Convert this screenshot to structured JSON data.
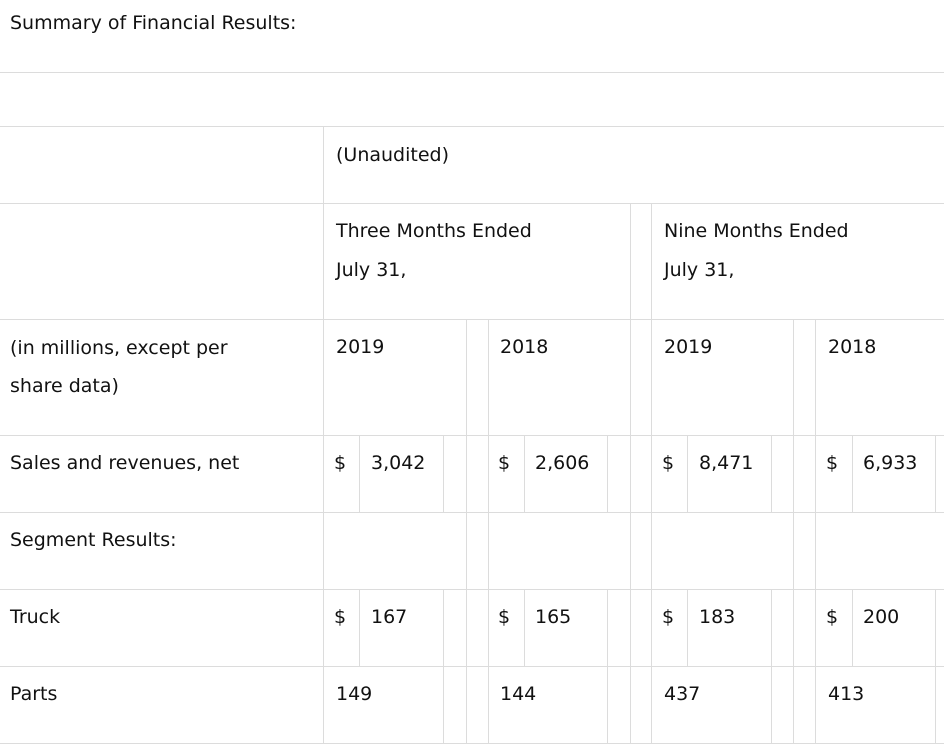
{
  "title": "Summary of Financial Results:",
  "header": {
    "unaudited": "(Unaudited)",
    "three_months": {
      "line1": "Three Months Ended",
      "line2": "July 31,"
    },
    "nine_months": {
      "line1": "Nine Months Ended",
      "line2": "July 31,"
    },
    "row_label_line1": "(in millions, except per",
    "row_label_line2": "share data)",
    "years": [
      "2019",
      "2018",
      "2019",
      "2018"
    ]
  },
  "rows": {
    "sales": {
      "label": "Sales and revenues, net",
      "currency": "$",
      "values": [
        "3,042",
        "2,606",
        "8,471",
        "6,933"
      ]
    },
    "segment": {
      "label": "Segment Results:"
    },
    "truck": {
      "label": "Truck",
      "currency": "$",
      "values": [
        "167",
        "165",
        "183",
        "200"
      ]
    },
    "parts": {
      "label": "Parts",
      "values": [
        "149",
        "144",
        "437",
        "413"
      ]
    }
  }
}
